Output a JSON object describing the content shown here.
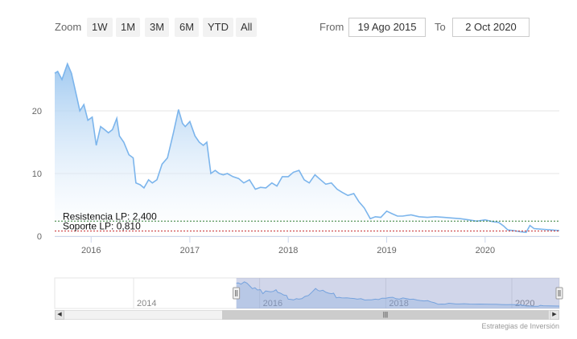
{
  "range_selector": {
    "zoom_label": "Zoom",
    "buttons": [
      "1W",
      "1M",
      "3M",
      "6M",
      "YTD",
      "All"
    ],
    "from_label": "From",
    "from_value": "19 Ago 2015",
    "to_label": "To",
    "to_value": "2 Oct 2020"
  },
  "credits": "Estrategias de Inversión",
  "colors": {
    "line": "#7cb5ec",
    "area_top": "#9cc7f0",
    "area_bottom": "#ffffff",
    "resistance_line": "#2e7d32",
    "support_line": "#c62828",
    "grid": "#e6e6e6",
    "navigator_mask": "#6677bb"
  },
  "chart_data": {
    "type": "area",
    "title": "",
    "xlabel": "",
    "ylabel": "",
    "ylim": [
      0,
      30
    ],
    "yticks": [
      0,
      10,
      20
    ],
    "xlim": [
      "2015-08-19",
      "2020-10-02"
    ],
    "xticks": [
      "2016",
      "2017",
      "2018",
      "2019",
      "2020"
    ],
    "grid": true,
    "series": [
      {
        "x": [
          "2015-08-19",
          "2015-08-30",
          "2015-09-15",
          "2015-10-05",
          "2015-10-20",
          "2015-11-10",
          "2015-11-20",
          "2015-12-05",
          "2015-12-20",
          "2016-01-05",
          "2016-01-20",
          "2016-02-05",
          "2016-02-20",
          "2016-03-05",
          "2016-03-20",
          "2016-04-05",
          "2016-04-15",
          "2016-05-01",
          "2016-05-20",
          "2016-06-05",
          "2016-06-15",
          "2016-07-01",
          "2016-07-15",
          "2016-08-01",
          "2016-08-15",
          "2016-09-01",
          "2016-09-20",
          "2016-10-10",
          "2016-11-01",
          "2016-11-20",
          "2016-12-05",
          "2016-12-15",
          "2017-01-01",
          "2017-01-20",
          "2017-02-05",
          "2017-02-20",
          "2017-03-05",
          "2017-03-20",
          "2017-04-05",
          "2017-04-20",
          "2017-05-05",
          "2017-05-20",
          "2017-06-10",
          "2017-07-01",
          "2017-07-20",
          "2017-08-10",
          "2017-09-01",
          "2017-09-20",
          "2017-10-10",
          "2017-11-01",
          "2017-11-20",
          "2017-12-10",
          "2018-01-01",
          "2018-01-20",
          "2018-02-10",
          "2018-03-01",
          "2018-03-20",
          "2018-04-10",
          "2018-05-01",
          "2018-05-20",
          "2018-06-10",
          "2018-07-01",
          "2018-07-20",
          "2018-08-10",
          "2018-09-01",
          "2018-09-20",
          "2018-10-10",
          "2018-11-01",
          "2018-11-20",
          "2018-12-10",
          "2019-01-01",
          "2019-01-20",
          "2019-02-10",
          "2019-03-01",
          "2019-04-01",
          "2019-05-01",
          "2019-06-01",
          "2019-07-01",
          "2019-08-01",
          "2019-09-01",
          "2019-10-01",
          "2019-11-01",
          "2019-12-01",
          "2020-01-01",
          "2020-02-01",
          "2020-02-20",
          "2020-03-10",
          "2020-03-25",
          "2020-04-15",
          "2020-05-10",
          "2020-06-01",
          "2020-06-15",
          "2020-07-01",
          "2020-08-01",
          "2020-09-01",
          "2020-10-02"
        ],
        "values": [
          26,
          26.3,
          25,
          27.5,
          26,
          22,
          20,
          21,
          18.5,
          19,
          14.5,
          17.5,
          17,
          16.5,
          17,
          18.8,
          16,
          15,
          13,
          12.5,
          8.5,
          8.2,
          7.7,
          9,
          8.5,
          9,
          11.5,
          12.5,
          16.5,
          20.2,
          18,
          17.5,
          18.3,
          16,
          15,
          14.5,
          15,
          10,
          10.5,
          10,
          9.8,
          10,
          9.5,
          9.2,
          8.5,
          9,
          7.5,
          7.8,
          7.7,
          8.5,
          8,
          9.5,
          9.5,
          10.2,
          10.5,
          9,
          8.5,
          9.8,
          9,
          8.3,
          8.5,
          7.5,
          7,
          6.5,
          6.8,
          5.5,
          4.5,
          2.8,
          3.1,
          3,
          4,
          3.6,
          3.2,
          3.2,
          3.4,
          3.1,
          3,
          3.1,
          3,
          2.9,
          2.8,
          2.6,
          2.4,
          2.6,
          2.3,
          2.2,
          1.6,
          1,
          0.9,
          0.7,
          0.6,
          1.7,
          1.2,
          1.1,
          1.0,
          0.9
        ]
      }
    ],
    "annotations": [
      {
        "label": "Resistencia LP: 2,400",
        "value": 2.4
      },
      {
        "label": "Soporte LP: 0,810",
        "value": 0.81
      }
    ],
    "navigator": {
      "xticks": [
        "2014",
        "2016",
        "2018",
        "2020"
      ],
      "xlim": [
        "2012-10-01",
        "2020-10-02"
      ],
      "selected": [
        "2015-08-19",
        "2020-10-02"
      ]
    }
  }
}
